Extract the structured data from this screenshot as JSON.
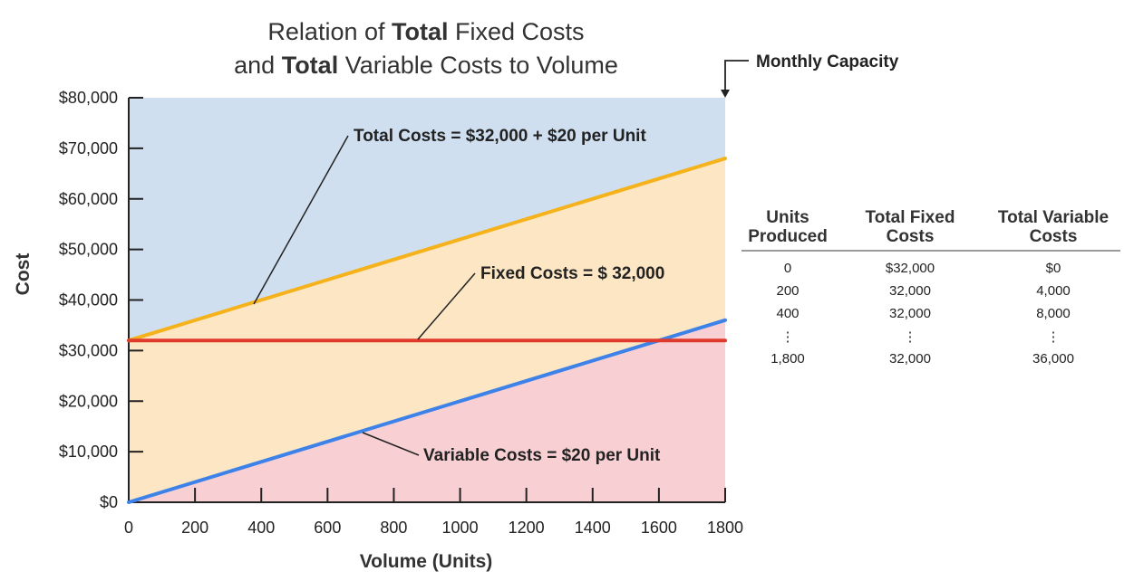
{
  "title": {
    "line1_plain": "Relation of ",
    "line1_bold": "Total",
    "line1_rest": " Fixed Costs",
    "line2_plain": "and ",
    "line2_bold": "Total",
    "line2_rest": " Variable Costs to Volume"
  },
  "chart_data": {
    "type": "line",
    "title": "Relation of Total Fixed Costs and Total Variable Costs to Volume",
    "xlabel": "Volume (Units)",
    "ylabel": "Cost",
    "xlim": [
      0,
      1800
    ],
    "ylim": [
      0,
      80000
    ],
    "x_ticks": [
      0,
      200,
      400,
      600,
      800,
      1000,
      1200,
      1400,
      1600,
      1800
    ],
    "y_ticks": [
      0,
      10000,
      20000,
      30000,
      40000,
      50000,
      60000,
      70000,
      80000
    ],
    "y_tick_labels": [
      "$0",
      "$10,000",
      "$20,000",
      "$30,000",
      "$40,000",
      "$50,000",
      "$60,000",
      "$70,000",
      "$80,000"
    ],
    "series": [
      {
        "key": "total",
        "color": "#f5b21b",
        "x": [
          0,
          1800
        ],
        "y": [
          32000,
          68000
        ]
      },
      {
        "key": "fixed",
        "color": "#e03a2d",
        "x": [
          0,
          1800
        ],
        "y": [
          32000,
          32000
        ]
      },
      {
        "key": "variable",
        "color": "#3d82e8",
        "x": [
          0,
          1800
        ],
        "y": [
          0,
          36000
        ]
      }
    ],
    "regions": {
      "upper_color": "#cfdff0",
      "middle_color": "#fce6c3",
      "lower_color": "#f8d0d4"
    },
    "annotations": {
      "total": "Total Costs = $32,000 + $20 per Unit",
      "fixed": "Fixed Costs = $ 32,000",
      "variable": "Variable Costs = $20 per Unit",
      "capacity": "Monthly Capacity"
    },
    "grid": false,
    "legend": "none"
  },
  "table": {
    "headers": [
      {
        "line1": "Units",
        "line2": "Produced"
      },
      {
        "line1": "Total Fixed",
        "line2": "Costs"
      },
      {
        "line1": "Total Variable",
        "line2": "Costs"
      }
    ],
    "rows": [
      [
        "0",
        "$32,000",
        "$0"
      ],
      [
        "200",
        "32,000",
        "4,000"
      ],
      [
        "400",
        "32,000",
        "8,000"
      ],
      [
        "⋮",
        "⋮",
        "⋮"
      ],
      [
        "1,800",
        "32,000",
        "36,000"
      ]
    ]
  }
}
